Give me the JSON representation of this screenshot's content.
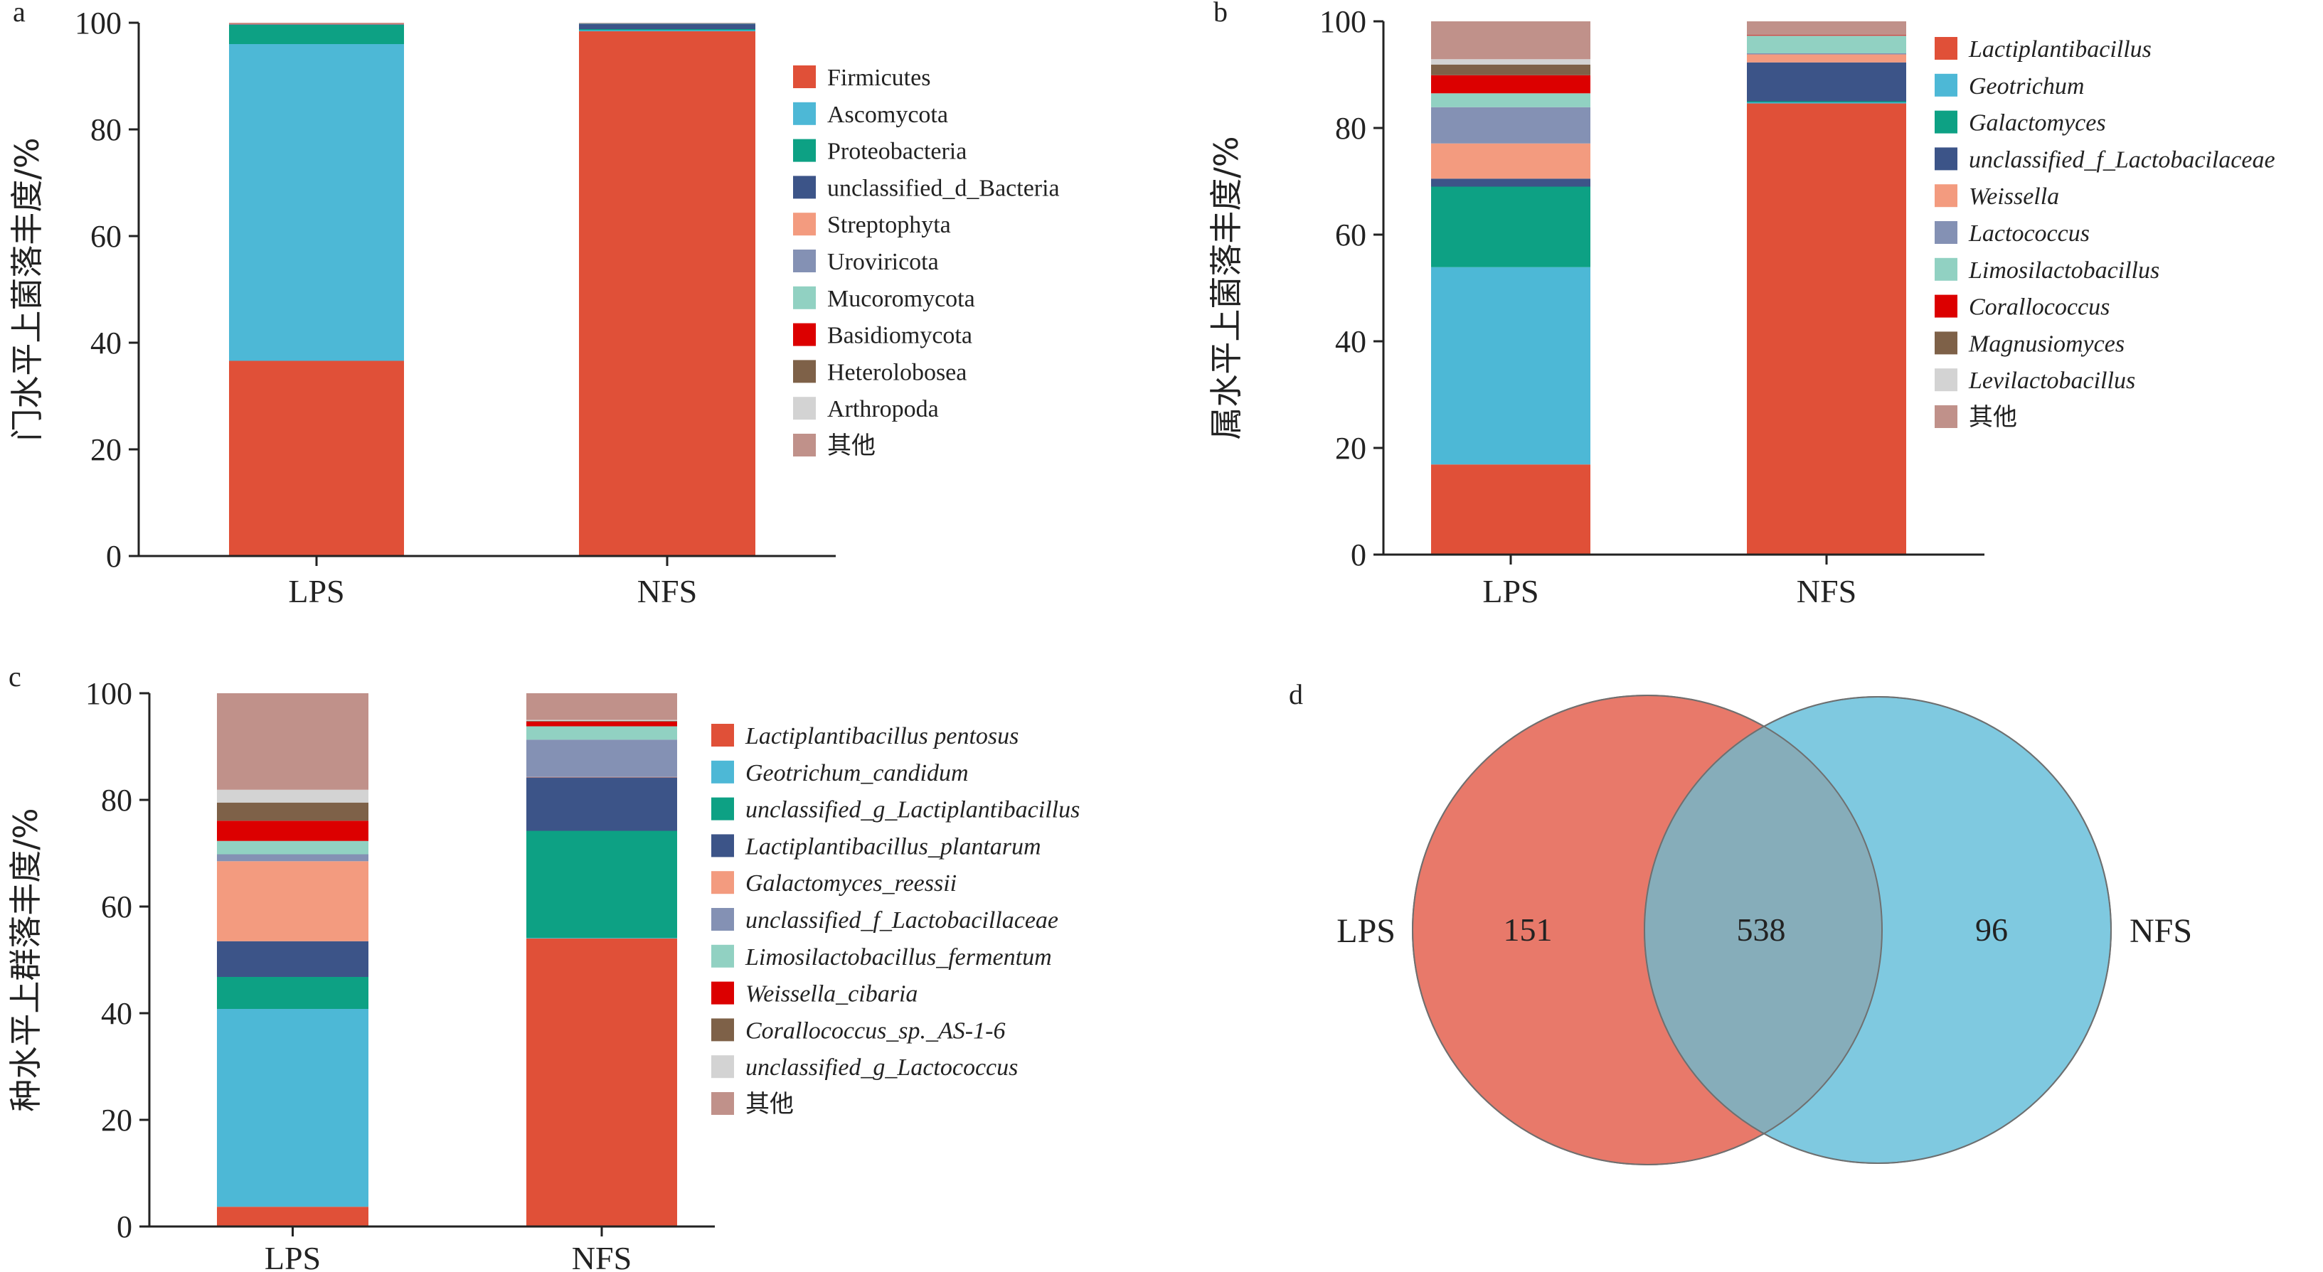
{
  "panel_labels": [
    "a",
    "b",
    "c",
    "d"
  ],
  "colors": {
    "axis": "#222222",
    "venn_left": "#E8796A",
    "venn_right": "#7FC9E0",
    "venn_overlap": "#86ADBA"
  },
  "chart_data": [
    {
      "type": "bar",
      "stacked": true,
      "panel": "a",
      "ylabel": "门水平上菌落丰度/%",
      "ylim": [
        0,
        100
      ],
      "yticks": [
        0,
        20,
        40,
        60,
        80,
        100
      ],
      "categories": [
        "LPS",
        "NFS"
      ],
      "legend_italic": false,
      "series": [
        {
          "name": "Firmicutes",
          "color": "#E05038",
          "values": [
            36.6,
            98.4
          ]
        },
        {
          "name": "Ascomycota",
          "color": "#4DB8D6",
          "values": [
            59.4,
            0.2
          ]
        },
        {
          "name": "Proteobacteria",
          "color": "#0DA184",
          "values": [
            3.6,
            0.2
          ]
        },
        {
          "name": "unclassified_d_Bacteria",
          "color": "#3C5488",
          "values": [
            0.1,
            1.0
          ]
        },
        {
          "name": "Streptophyta",
          "color": "#F39B7F",
          "values": [
            0.1,
            0.0
          ]
        },
        {
          "name": "Uroviricota",
          "color": "#8491B4",
          "values": [
            0.0,
            0.0
          ]
        },
        {
          "name": "Mucoromycota",
          "color": "#91D1C2",
          "values": [
            0.05,
            0.1
          ]
        },
        {
          "name": "Basidiomycota",
          "color": "#DC0000",
          "values": [
            0.05,
            0.0
          ]
        },
        {
          "name": "Heterolobosea",
          "color": "#7E6148",
          "values": [
            0.0,
            0.0
          ]
        },
        {
          "name": "Arthropoda",
          "color": "#D3D3D3",
          "values": [
            0.0,
            0.0
          ]
        },
        {
          "name": "其他",
          "color": "#C0918A",
          "values": [
            0.1,
            0.1
          ]
        }
      ]
    },
    {
      "type": "bar",
      "stacked": true,
      "panel": "b",
      "ylabel": "属水平上菌落丰度/%",
      "ylim": [
        0,
        100
      ],
      "yticks": [
        0,
        20,
        40,
        60,
        80,
        100
      ],
      "categories": [
        "LPS",
        "NFS"
      ],
      "legend_italic": true,
      "series": [
        {
          "name": "Lactiplantibacillus",
          "color": "#E05038",
          "values": [
            16.9,
            84.6
          ]
        },
        {
          "name": "Geotrichum",
          "color": "#4DB8D6",
          "values": [
            37.0,
            0.2
          ]
        },
        {
          "name": "Galactomyces",
          "color": "#0DA184",
          "values": [
            15.1,
            0.2
          ]
        },
        {
          "name": "unclassified_f_Lactobacilaceae",
          "color": "#3C5488",
          "values": [
            1.5,
            7.3
          ]
        },
        {
          "name": "Weissella",
          "color": "#F39B7F",
          "values": [
            6.6,
            1.5
          ]
        },
        {
          "name": "Lactococcus",
          "color": "#8491B4",
          "values": [
            6.8,
            0.2
          ]
        },
        {
          "name": "Limosilactobacillus",
          "color": "#91D1C2",
          "values": [
            2.6,
            3.3
          ]
        },
        {
          "name": "Corallococcus",
          "color": "#DC0000",
          "values": [
            3.4,
            0.1
          ]
        },
        {
          "name": "Magnusiomyces",
          "color": "#7E6148",
          "values": [
            2.0,
            0.0
          ]
        },
        {
          "name": "Levilactobacillus",
          "color": "#D3D3D3",
          "values": [
            1.0,
            0.0
          ]
        },
        {
          "name": "其他",
          "color": "#C0918A",
          "values": [
            7.1,
            2.6
          ]
        }
      ]
    },
    {
      "type": "bar",
      "stacked": true,
      "panel": "c",
      "ylabel": "种水平上群落丰度/%",
      "ylim": [
        0,
        100
      ],
      "yticks": [
        0,
        20,
        40,
        60,
        80,
        100
      ],
      "categories": [
        "LPS",
        "NFS"
      ],
      "legend_italic": true,
      "series": [
        {
          "name": "Lactiplantibacillus pentosus",
          "color": "#E05038",
          "values": [
            3.7,
            54.0
          ]
        },
        {
          "name": "Geotrichum_candidum",
          "color": "#4DB8D6",
          "values": [
            37.1,
            0.1
          ]
        },
        {
          "name": "unclassified_g_Lactiplantibacillus",
          "color": "#0DA184",
          "values": [
            6.0,
            20.1
          ]
        },
        {
          "name": "Lactiplantibacillus_plantarum",
          "color": "#3C5488",
          "values": [
            6.7,
            10.0
          ]
        },
        {
          "name": "Galactomyces_reessii",
          "color": "#F39B7F",
          "values": [
            15.0,
            0.1
          ]
        },
        {
          "name": "unclassified_f_Lactobacillaceae",
          "color": "#8491B4",
          "values": [
            1.3,
            7.0
          ]
        },
        {
          "name": "Limosilactobacillus_fermentum",
          "color": "#91D1C2",
          "values": [
            2.5,
            2.5
          ]
        },
        {
          "name": "Weissella_cibaria",
          "color": "#DC0000",
          "values": [
            3.8,
            0.9
          ]
        },
        {
          "name": "Corallococcus_sp._AS-1-6",
          "color": "#7E6148",
          "values": [
            3.4,
            0.1
          ]
        },
        {
          "name": "unclassified_g_Lactococcus",
          "color": "#D3D3D3",
          "values": [
            2.4,
            0.2
          ]
        },
        {
          "name": "其他",
          "color": "#C0918A",
          "values": [
            18.1,
            5.0
          ]
        }
      ]
    },
    {
      "type": "venn",
      "panel": "d",
      "sets": [
        "LPS",
        "NFS"
      ],
      "counts": {
        "LPS_only": "151",
        "shared": "538",
        "NFS_only": "96"
      }
    }
  ]
}
